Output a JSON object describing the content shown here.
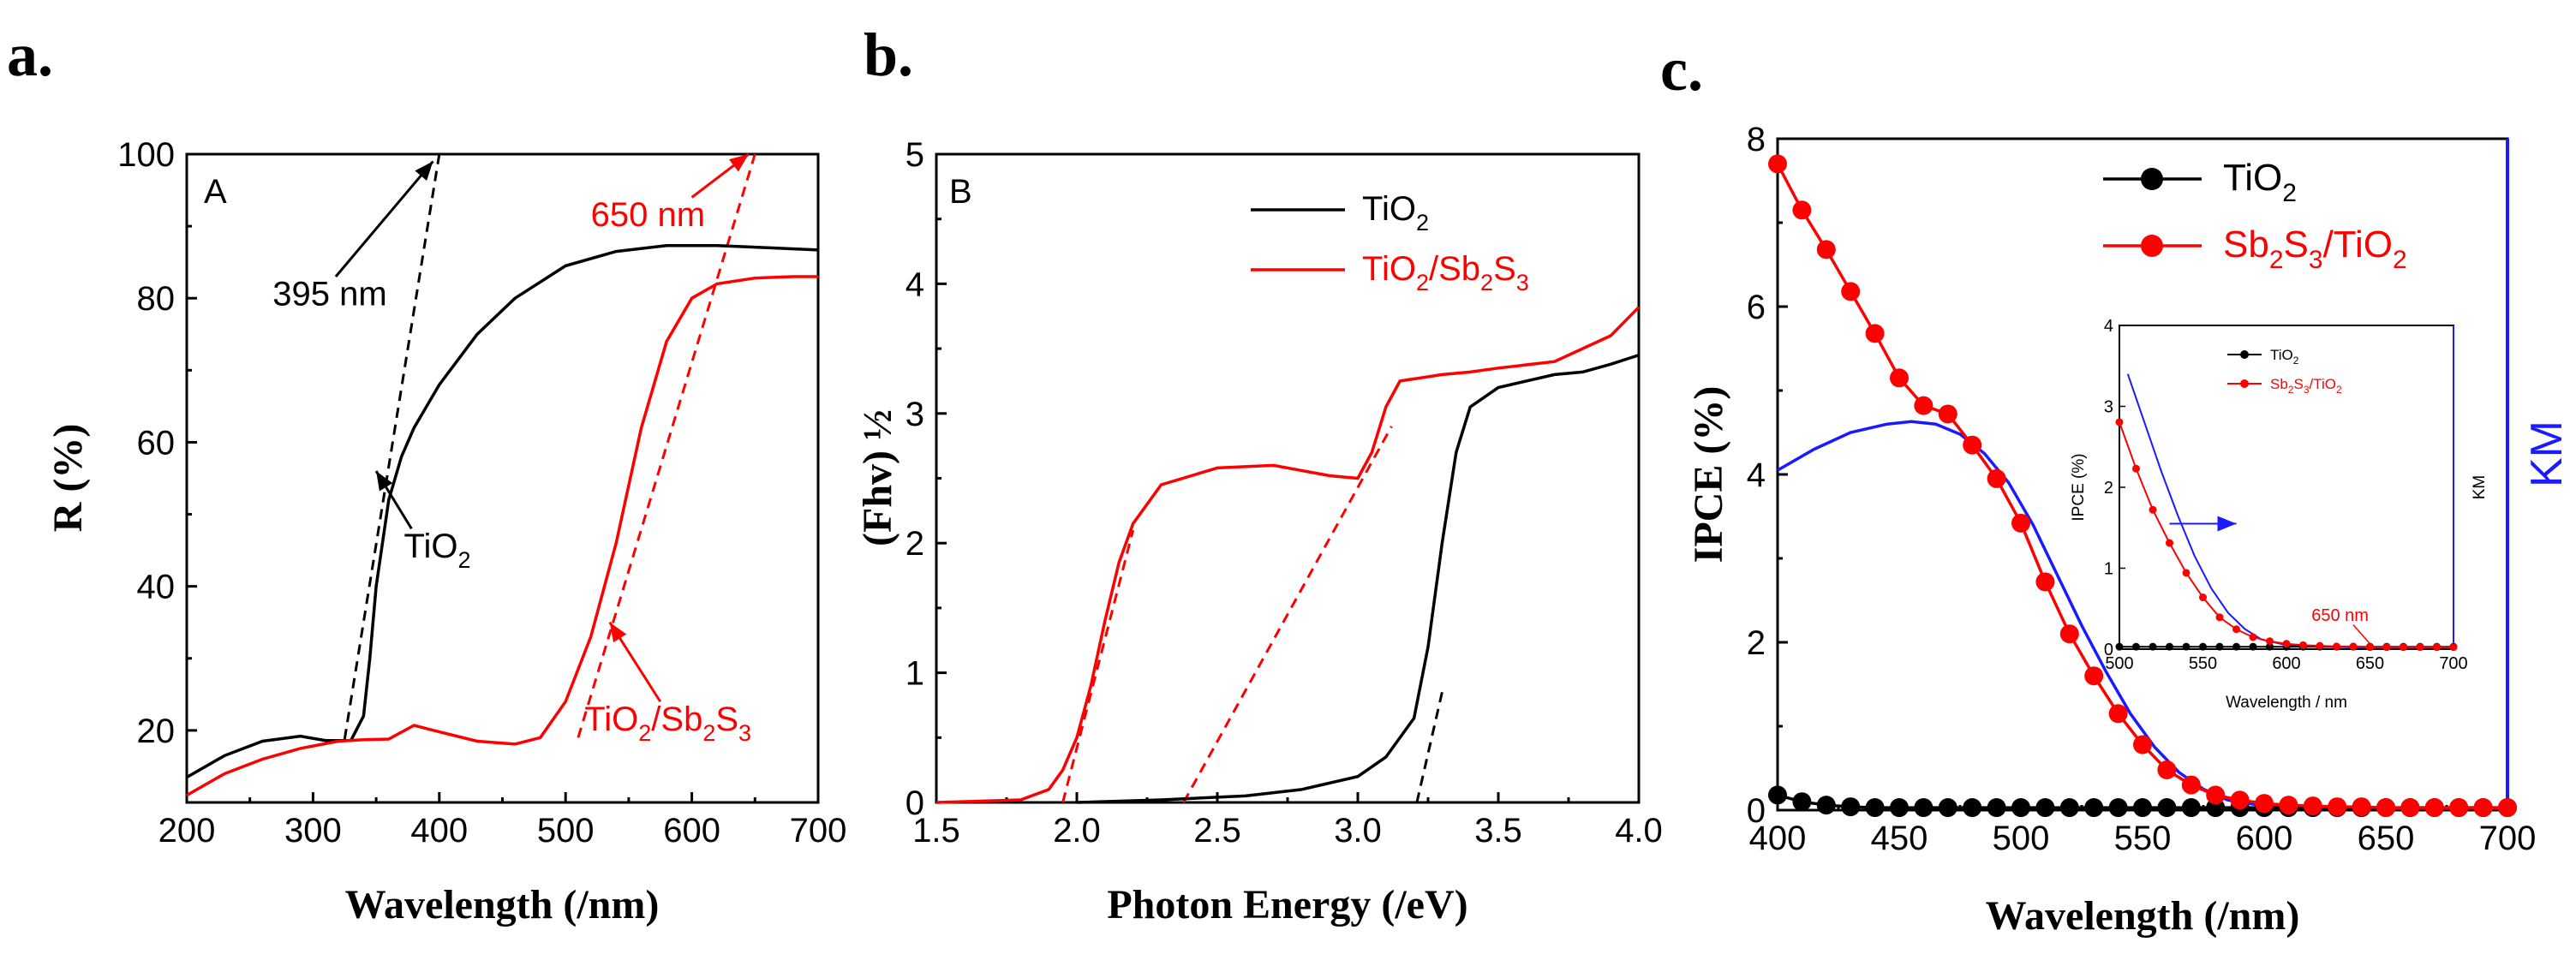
{
  "colors": {
    "black": "#000000",
    "red": "#ff0000",
    "blue": "#1a1aff"
  },
  "chart_data": [
    {
      "panel": "a.",
      "type": "line",
      "inner_label": "A",
      "xlabel": "Wavelength (/nm)",
      "ylabel": "R (%)",
      "xlim": [
        200,
        700
      ],
      "ylim": [
        10,
        100
      ],
      "xticks": [
        200,
        300,
        400,
        500,
        600,
        700
      ],
      "yticks": [
        20,
        40,
        60,
        80,
        100
      ],
      "series": [
        {
          "name": "TiO2",
          "color": "#000000",
          "x": [
            200,
            230,
            260,
            290,
            310,
            330,
            340,
            345,
            350,
            360,
            370,
            380,
            400,
            430,
            460,
            500,
            540,
            580,
            620,
            660,
            700
          ],
          "y": [
            13.5,
            16.5,
            18.5,
            19.2,
            18.6,
            18.6,
            22,
            30,
            40,
            52,
            58,
            62,
            68,
            75,
            80,
            84.5,
            86.5,
            87.3,
            87.3,
            87.0,
            86.7
          ]
        },
        {
          "name": "TiO2/Sb2S3",
          "color": "#ff0000",
          "x": [
            200,
            230,
            260,
            290,
            320,
            340,
            360,
            380,
            400,
            430,
            460,
            480,
            500,
            520,
            540,
            560,
            580,
            600,
            620,
            650,
            680,
            700
          ],
          "y": [
            11,
            14,
            16,
            17.5,
            18.5,
            18.7,
            18.8,
            20.7,
            19.8,
            18.5,
            18.1,
            19,
            24,
            33,
            46,
            62,
            74,
            80,
            82,
            82.8,
            83.0,
            83.0
          ]
        }
      ],
      "fit_lines": [
        {
          "name": "TiO2 tangent",
          "color": "#000000",
          "x": [
            325,
            400
          ],
          "y": [
            18.8,
            100
          ]
        },
        {
          "name": "Sb2S3 tangent",
          "color": "#ff0000",
          "x": [
            510,
            650
          ],
          "y": [
            19,
            100
          ]
        }
      ],
      "annotations": [
        {
          "text": "395 nm",
          "color": "#000000",
          "x": 268,
          "y": 79,
          "arrow_to": [
            395,
            99
          ]
        },
        {
          "text": "650 nm",
          "color": "#ff0000",
          "x": 520,
          "y": 90,
          "arrow_to": [
            645,
            100
          ]
        },
        {
          "text_main": "TiO",
          "text_sub": "2",
          "color": "#000000",
          "x": 372,
          "y": 44,
          "arrow_to": [
            350,
            56
          ]
        },
        {
          "text_main": "TiO",
          "text_sub": "2",
          "text_mid": "/Sb",
          "text_sub2": "2",
          "text_mid2": "S",
          "text_sub3": "3",
          "color": "#ff0000",
          "x": 515,
          "y": 20,
          "arrow_to": [
            535,
            35
          ]
        }
      ]
    },
    {
      "panel": "b.",
      "type": "line",
      "inner_label": "B",
      "xlabel": "Photon Energy (/eV)",
      "ylabel": "(Fhv) ½",
      "xlim": [
        1.5,
        4.0
      ],
      "ylim": [
        0,
        5
      ],
      "xticks": [
        "1.5",
        "2.0",
        "2.5",
        "3.0",
        "3.5",
        "4.0"
      ],
      "yticks": [
        0,
        1,
        2,
        3,
        4,
        5
      ],
      "legend": [
        {
          "main": "TiO",
          "sub": "2",
          "color": "#000000"
        },
        {
          "main": "TiO",
          "sub": "2",
          "mid": "/Sb",
          "sub2": "2",
          "mid2": "S",
          "sub3": "3",
          "color": "#ff0000"
        }
      ],
      "series": [
        {
          "name": "TiO2",
          "color": "#000000",
          "x": [
            2.0,
            2.3,
            2.6,
            2.8,
            3.0,
            3.1,
            3.2,
            3.25,
            3.3,
            3.35,
            3.4,
            3.5,
            3.6,
            3.7,
            3.8,
            3.9,
            4.0
          ],
          "y": [
            0,
            0.02,
            0.05,
            0.1,
            0.2,
            0.35,
            0.65,
            1.2,
            2.0,
            2.7,
            3.05,
            3.2,
            3.25,
            3.3,
            3.32,
            3.38,
            3.45
          ]
        },
        {
          "name": "TiO2/Sb2S3",
          "color": "#ff0000",
          "x": [
            1.5,
            1.8,
            1.9,
            1.95,
            2.0,
            2.05,
            2.1,
            2.15,
            2.2,
            2.3,
            2.5,
            2.7,
            2.9,
            3.0,
            3.05,
            3.1,
            3.15,
            3.3,
            3.4,
            3.5,
            3.7,
            3.9,
            4.0
          ],
          "y": [
            0,
            0.02,
            0.1,
            0.25,
            0.5,
            0.9,
            1.4,
            1.85,
            2.15,
            2.45,
            2.58,
            2.6,
            2.52,
            2.5,
            2.7,
            3.05,
            3.25,
            3.3,
            3.32,
            3.35,
            3.4,
            3.6,
            3.82
          ]
        }
      ],
      "fit_lines": [
        {
          "name": "Sb2S3 edge",
          "color": "#ff0000",
          "x": [
            1.95,
            2.2
          ],
          "y": [
            0,
            2.1
          ]
        },
        {
          "name": "Sb2S3 second edge",
          "color": "#ff0000",
          "x": [
            2.38,
            3.12
          ],
          "y": [
            0,
            2.9
          ]
        },
        {
          "name": "TiO2 edge",
          "color": "#000000",
          "x": [
            3.21,
            3.3
          ],
          "y": [
            0,
            0.85
          ]
        }
      ]
    },
    {
      "panel": "c.",
      "type": "line",
      "xlabel": "Wavelength (/nm)",
      "ylabel": "IPCE (%)",
      "ylabel_right": "KM",
      "xlim": [
        400,
        700
      ],
      "ylim": [
        0,
        8
      ],
      "xticks": [
        400,
        450,
        500,
        550,
        600,
        650,
        700
      ],
      "yticks": [
        0,
        2,
        4,
        6,
        8
      ],
      "legend": [
        {
          "main": "TiO",
          "sub": "2",
          "color": "#000000"
        },
        {
          "main": "Sb",
          "sub": "2",
          "mid": "S",
          "sub2": "3",
          "mid2": "/TiO",
          "sub3": "2",
          "color": "#ff0000"
        }
      ],
      "series": [
        {
          "name": "TiO2",
          "color": "#000000",
          "marker": "circle",
          "x": [
            400,
            410,
            420,
            430,
            440,
            450,
            460,
            470,
            480,
            490,
            500,
            510,
            520,
            530,
            540,
            550,
            560,
            570,
            580,
            590,
            600,
            610,
            620,
            630,
            640,
            650,
            660,
            670,
            680,
            690,
            700
          ],
          "y": [
            0.18,
            0.1,
            0.06,
            0.04,
            0.03,
            0.03,
            0.03,
            0.03,
            0.03,
            0.03,
            0.03,
            0.03,
            0.03,
            0.03,
            0.03,
            0.03,
            0.03,
            0.03,
            0.03,
            0.03,
            0.03,
            0.03,
            0.03,
            0.03,
            0.03,
            0.03,
            0.03,
            0.03,
            0.03,
            0.03,
            0.03
          ]
        },
        {
          "name": "Sb2S3/TiO2",
          "color": "#ff0000",
          "marker": "circle",
          "x": [
            400,
            410,
            420,
            430,
            440,
            450,
            460,
            470,
            480,
            490,
            500,
            510,
            520,
            530,
            540,
            550,
            560,
            570,
            580,
            590,
            600,
            610,
            620,
            630,
            640,
            650,
            660,
            670,
            680,
            690,
            700
          ],
          "y": [
            7.7,
            7.15,
            6.68,
            6.18,
            5.68,
            5.15,
            4.82,
            4.72,
            4.35,
            3.95,
            3.42,
            2.72,
            2.1,
            1.6,
            1.15,
            0.78,
            0.48,
            0.3,
            0.18,
            0.12,
            0.08,
            0.06,
            0.05,
            0.04,
            0.04,
            0.03,
            0.03,
            0.03,
            0.03,
            0.03,
            0.03
          ]
        },
        {
          "name": "KM",
          "color": "#1a1aff",
          "marker": "none",
          "x": [
            400,
            415,
            430,
            445,
            455,
            465,
            475,
            485,
            495,
            505,
            515,
            525,
            535,
            545,
            555,
            565,
            575,
            585,
            600,
            620,
            650,
            680,
            700
          ],
          "y": [
            4.05,
            4.3,
            4.5,
            4.6,
            4.63,
            4.6,
            4.48,
            4.25,
            3.9,
            3.4,
            2.8,
            2.2,
            1.65,
            1.15,
            0.75,
            0.45,
            0.25,
            0.12,
            0.05,
            0.03,
            0.02,
            0.02,
            0.02
          ]
        }
      ],
      "inset": {
        "xlabel": "Wavelength / nm",
        "ylabel": "IPCE (%)",
        "ylabel_right": "KM",
        "xlim": [
          500,
          700
        ],
        "ylim": [
          0,
          4
        ],
        "xticks": [
          500,
          550,
          600,
          650,
          700
        ],
        "yticks": [
          0,
          1,
          2,
          3,
          4
        ],
        "annotation": "650 nm",
        "legend": [
          {
            "main": "TiO",
            "sub": "2",
            "color": "#000000"
          },
          {
            "main": "Sb",
            "sub": "2",
            "mid": "S",
            "sub2": "3",
            "mid2": "/TiO",
            "sub3": "2",
            "color": "#ff0000"
          }
        ]
      }
    }
  ]
}
